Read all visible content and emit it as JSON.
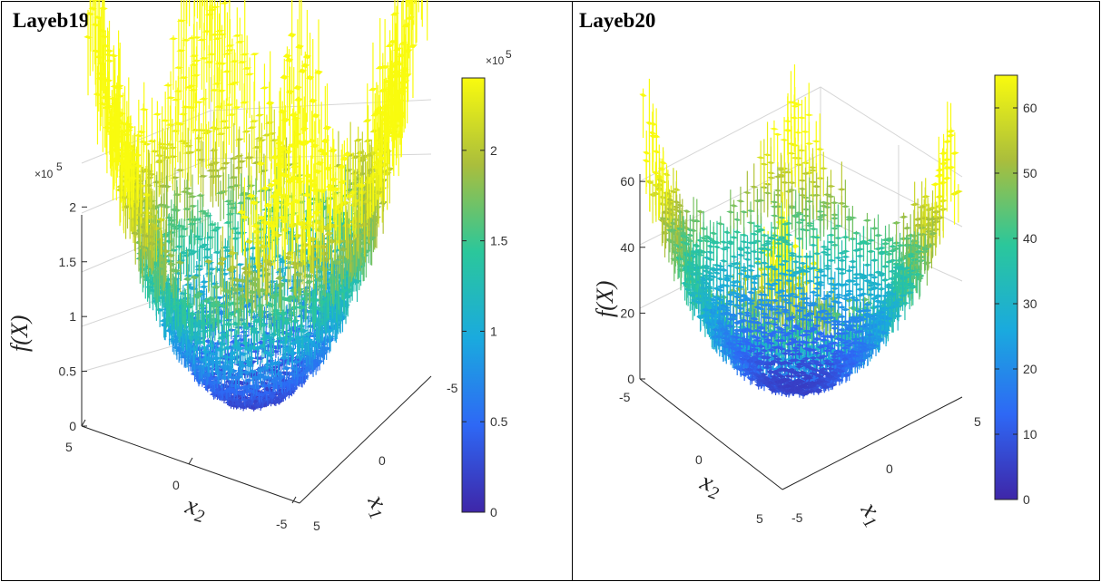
{
  "chart_data": [
    {
      "type": "surface",
      "title": "Layeb19",
      "xlabel": "x_1",
      "ylabel": "x_2",
      "zlabel": "f(X)",
      "x_range": [
        -5,
        5
      ],
      "y_range": [
        -5,
        5
      ],
      "z_range": [
        0,
        230000
      ],
      "z_exponent": "×10^5",
      "x_ticks": [
        "-5",
        "0",
        "5"
      ],
      "y_ticks": [
        "5",
        "0",
        "-5"
      ],
      "z_ticks": [
        "0",
        "0.5",
        "1",
        "1.5",
        "2"
      ],
      "colorbar_ticks": [
        "0",
        "0.5",
        "1",
        "1.5",
        "2"
      ],
      "colorbar_range": [
        0,
        240000
      ],
      "colormap": "parula",
      "colormap_colors": [
        "#3e26a8",
        "#2e68f5",
        "#1aaade",
        "#2bc79b",
        "#aabe3c",
        "#f9fb0e"
      ]
    },
    {
      "type": "surface",
      "title": "Layeb20",
      "xlabel": "x_1",
      "ylabel": "x_2",
      "zlabel": "f(X)",
      "x_range": [
        -5,
        5
      ],
      "y_range": [
        -5,
        5
      ],
      "z_range": [
        0,
        65
      ],
      "x_ticks": [
        "-5",
        "0",
        "5"
      ],
      "y_ticks": [
        "-5",
        "0",
        "5"
      ],
      "z_ticks": [
        "0",
        "20",
        "40",
        "60"
      ],
      "colorbar_ticks": [
        "0",
        "10",
        "20",
        "30",
        "40",
        "50",
        "60"
      ],
      "colorbar_range": [
        0,
        65
      ],
      "colormap": "parula",
      "colormap_colors": [
        "#3e26a8",
        "#2e68f5",
        "#1aaade",
        "#2bc79b",
        "#aabe3c",
        "#f9fb0e"
      ]
    }
  ]
}
